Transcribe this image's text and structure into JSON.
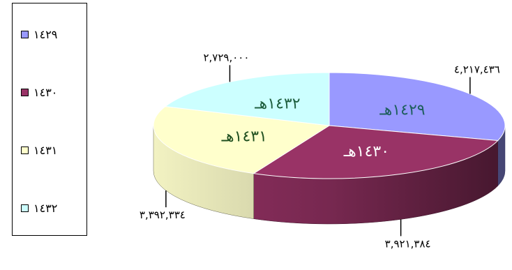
{
  "chart_data": {
    "type": "pie",
    "title": "",
    "legend_position": "left",
    "slices": [
      {
        "legend": "١٤٢٩",
        "label": "١٤٢٩هـ",
        "value": 4217436,
        "value_text": "٤,٢١٧,٤٣٦",
        "color": "#9999ff"
      },
      {
        "legend": "١٤٣٠",
        "label": "١٤٣٠هـ",
        "value": 3921384,
        "value_text": "٣,٩٢١,٣٨٤",
        "color": "#993366"
      },
      {
        "legend": "١٤٣١",
        "label": "١٤٣١هـ",
        "value": 3392334,
        "value_text": "٣,٣٩٢,٣٣٤",
        "color": "#ffffcc"
      },
      {
        "legend": "١٤٣٢",
        "label": "١٤٣٢هـ",
        "value": 2729000,
        "value_text": "٢,٧٢٩,٠٠٠",
        "color": "#ccffff"
      }
    ]
  }
}
